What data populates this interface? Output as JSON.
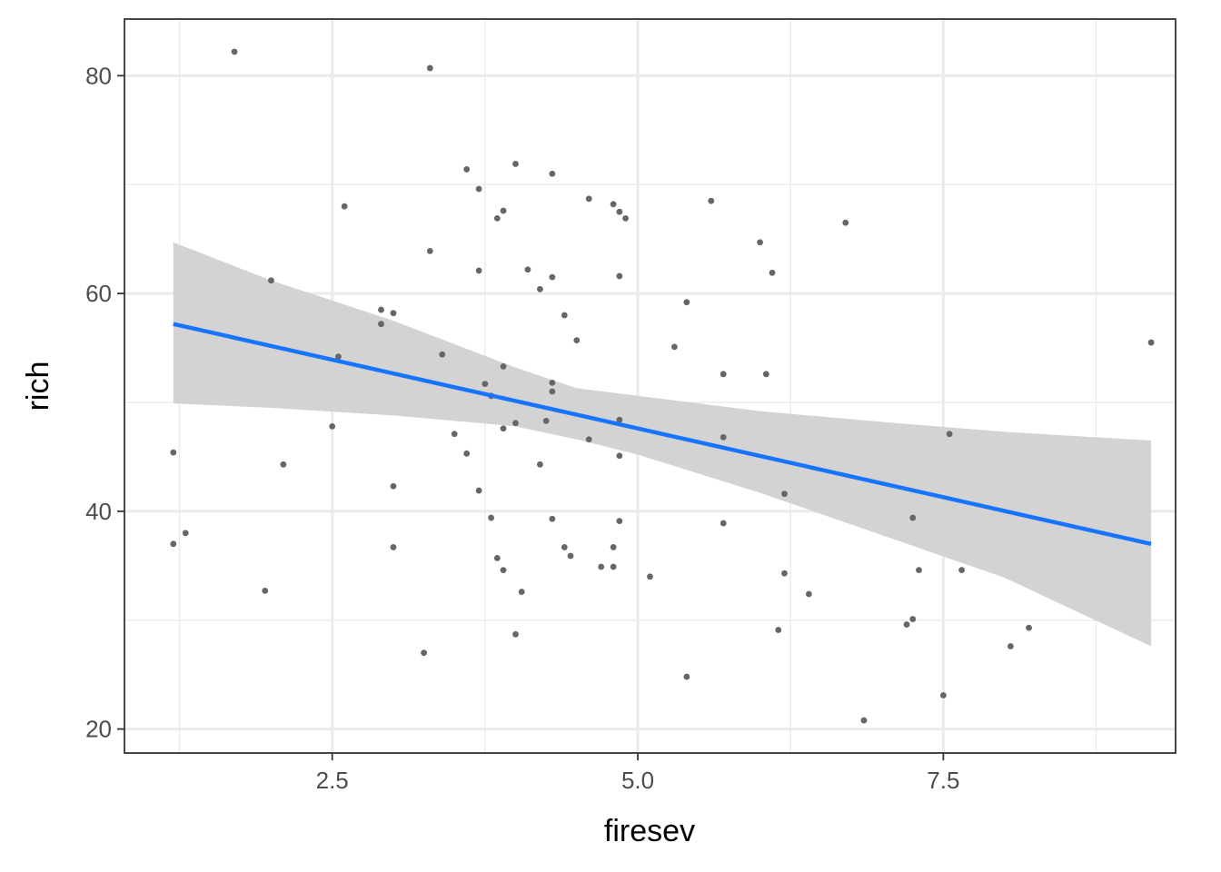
{
  "chart_data": {
    "type": "scatter",
    "xlabel": "firesev",
    "ylabel": "rich",
    "xlim": [
      0.8,
      9.4
    ],
    "ylim": [
      17.8,
      85.2
    ],
    "x_ticks": [
      2.5,
      5.0,
      7.5
    ],
    "x_tick_labels": [
      "2.5",
      "5.0",
      "7.5"
    ],
    "x_minor_ticks": [
      1.25,
      3.75,
      6.25,
      8.75
    ],
    "y_ticks": [
      20,
      40,
      60,
      80
    ],
    "y_tick_labels": [
      "20",
      "40",
      "60",
      "80"
    ],
    "y_minor_ticks": [
      30,
      50,
      70
    ],
    "grid": true,
    "legend": "none",
    "points": [
      [
        1.7,
        82.2
      ],
      [
        3.3,
        80.7
      ],
      [
        4.0,
        71.9
      ],
      [
        3.6,
        71.4
      ],
      [
        4.3,
        71.0
      ],
      [
        3.7,
        69.6
      ],
      [
        4.6,
        68.7
      ],
      [
        5.6,
        68.5
      ],
      [
        4.8,
        68.2
      ],
      [
        4.85,
        67.5
      ],
      [
        3.9,
        67.6
      ],
      [
        3.85,
        66.9
      ],
      [
        4.9,
        66.9
      ],
      [
        2.6,
        68.0
      ],
      [
        6.7,
        66.5
      ],
      [
        6.0,
        64.7
      ],
      [
        3.3,
        63.9
      ],
      [
        3.7,
        62.1
      ],
      [
        4.1,
        62.2
      ],
      [
        6.1,
        61.9
      ],
      [
        4.3,
        61.5
      ],
      [
        4.85,
        61.6
      ],
      [
        2.0,
        61.2
      ],
      [
        4.2,
        60.4
      ],
      [
        5.4,
        59.2
      ],
      [
        2.9,
        58.5
      ],
      [
        3.0,
        58.2
      ],
      [
        4.4,
        58.0
      ],
      [
        2.9,
        57.2
      ],
      [
        4.5,
        55.7
      ],
      [
        9.2,
        55.5
      ],
      [
        5.3,
        55.1
      ],
      [
        3.4,
        54.4
      ],
      [
        2.55,
        54.2
      ],
      [
        3.9,
        53.3
      ],
      [
        5.7,
        52.6
      ],
      [
        6.05,
        52.6
      ],
      [
        4.3,
        51.8
      ],
      [
        3.75,
        51.7
      ],
      [
        4.3,
        51.0
      ],
      [
        3.8,
        50.6
      ],
      [
        4.85,
        48.4
      ],
      [
        4.25,
        48.3
      ],
      [
        4.0,
        48.1
      ],
      [
        2.5,
        47.8
      ],
      [
        3.9,
        47.6
      ],
      [
        7.55,
        47.1
      ],
      [
        3.5,
        47.1
      ],
      [
        5.7,
        46.8
      ],
      [
        4.6,
        46.6
      ],
      [
        1.2,
        45.4
      ],
      [
        3.6,
        45.3
      ],
      [
        4.85,
        45.1
      ],
      [
        4.2,
        44.3
      ],
      [
        2.1,
        44.3
      ],
      [
        3.0,
        42.3
      ],
      [
        3.7,
        41.9
      ],
      [
        6.2,
        41.6
      ],
      [
        3.8,
        39.4
      ],
      [
        4.3,
        39.3
      ],
      [
        7.25,
        39.4
      ],
      [
        4.85,
        39.1
      ],
      [
        5.7,
        38.9
      ],
      [
        1.3,
        38.0
      ],
      [
        1.2,
        37.0
      ],
      [
        3.0,
        36.7
      ],
      [
        4.4,
        36.7
      ],
      [
        4.8,
        36.7
      ],
      [
        4.45,
        35.9
      ],
      [
        3.85,
        35.7
      ],
      [
        4.7,
        34.9
      ],
      [
        4.8,
        34.9
      ],
      [
        7.3,
        34.6
      ],
      [
        7.65,
        34.6
      ],
      [
        3.9,
        34.6
      ],
      [
        6.2,
        34.3
      ],
      [
        5.1,
        34.0
      ],
      [
        1.95,
        32.7
      ],
      [
        4.05,
        32.6
      ],
      [
        6.4,
        32.4
      ],
      [
        7.25,
        30.1
      ],
      [
        7.2,
        29.6
      ],
      [
        8.2,
        29.3
      ],
      [
        6.15,
        29.1
      ],
      [
        4.0,
        28.7
      ],
      [
        8.05,
        27.6
      ],
      [
        3.25,
        27.0
      ],
      [
        5.4,
        24.8
      ],
      [
        7.5,
        23.1
      ],
      [
        6.85,
        20.8
      ]
    ],
    "fit_line": {
      "x": [
        1.2,
        9.2
      ],
      "y": [
        57.2,
        37.0
      ],
      "color": "#1874FF"
    },
    "confidence_band": {
      "x": [
        1.2,
        2.0,
        3.0,
        4.0,
        4.5,
        5.0,
        6.0,
        7.0,
        8.0,
        9.2
      ],
      "lower": [
        49.9,
        49.5,
        48.8,
        47.8,
        46.6,
        45.2,
        41.7,
        37.8,
        33.9,
        27.6
      ],
      "upper": [
        64.7,
        61.2,
        57.5,
        53.2,
        51.3,
        50.6,
        49.2,
        48.2,
        47.3,
        46.5
      ],
      "color": "#D3D3D3"
    },
    "point_color": "#666666"
  }
}
